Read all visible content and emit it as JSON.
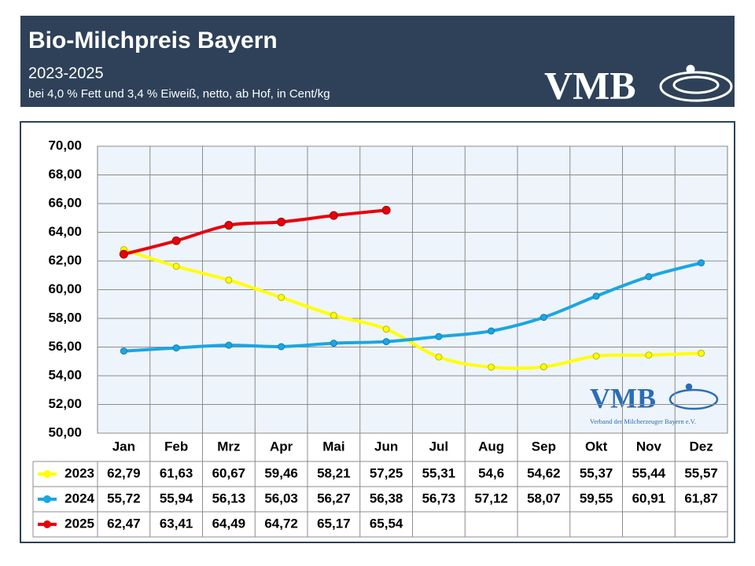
{
  "chart_data": {
    "type": "line",
    "title": "Bio-Milchpreis Bayern",
    "subtitle": "2023-2025",
    "note": "bei 4,0 % Fett und 3,4 % Eiweiß, netto, ab Hof, in Cent/kg",
    "logo": "VMB",
    "logo_subtitle": "Verband der Milcherzeuger Bayern e.V.",
    "categories": [
      "Jan",
      "Feb",
      "Mrz",
      "Apr",
      "Mai",
      "Jun",
      "Jul",
      "Aug",
      "Sep",
      "Okt",
      "Nov",
      "Dez"
    ],
    "series": [
      {
        "name": "2023",
        "color": "#ffff00",
        "values": [
          62.79,
          61.63,
          60.67,
          59.46,
          58.21,
          57.25,
          55.31,
          54.6,
          54.62,
          55.37,
          55.44,
          55.57
        ],
        "value_labels": [
          "62,79",
          "61,63",
          "60,67",
          "59,46",
          "58,21",
          "57,25",
          "55,31",
          "54,6",
          "54,62",
          "55,37",
          "55,44",
          "55,57"
        ]
      },
      {
        "name": "2024",
        "color": "#1ba6e2",
        "values": [
          55.72,
          55.94,
          56.13,
          56.03,
          56.27,
          56.38,
          56.73,
          57.12,
          58.07,
          59.55,
          60.91,
          61.87
        ],
        "value_labels": [
          "55,72",
          "55,94",
          "56,13",
          "56,03",
          "56,27",
          "56,38",
          "56,73",
          "57,12",
          "58,07",
          "59,55",
          "60,91",
          "61,87"
        ]
      },
      {
        "name": "2025",
        "color": "#e8000b",
        "values": [
          62.47,
          63.41,
          64.49,
          64.72,
          65.17,
          65.54,
          null,
          null,
          null,
          null,
          null,
          null
        ],
        "value_labels": [
          "62,47",
          "63,41",
          "64,49",
          "64,72",
          "65,17",
          "65,54",
          null,
          null,
          null,
          null,
          null,
          null
        ]
      }
    ],
    "ylim": [
      50,
      70
    ],
    "yticks": [
      {
        "value": 50,
        "label": "50,00"
      },
      {
        "value": 52,
        "label": "52,00"
      },
      {
        "value": 54,
        "label": "54,00"
      },
      {
        "value": 56,
        "label": "56,00"
      },
      {
        "value": 58,
        "label": "58,00"
      },
      {
        "value": 60,
        "label": "60,00"
      },
      {
        "value": 62,
        "label": "62,00"
      },
      {
        "value": 64,
        "label": "64,00"
      },
      {
        "value": 66,
        "label": "66,00"
      },
      {
        "value": 68,
        "label": "68,00"
      },
      {
        "value": 70,
        "label": "70,00"
      }
    ],
    "grid": true
  }
}
